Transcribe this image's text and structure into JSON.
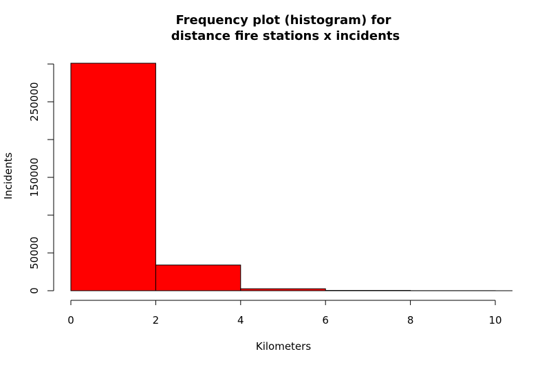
{
  "chart_data": {
    "type": "bar",
    "title_lines": [
      "Frequency plot (histogram) for",
      "distance fire stations x incidents"
    ],
    "xlabel": "Kilometers",
    "ylabel": "Incidents",
    "bins": [
      {
        "x0": 0,
        "x1": 2,
        "value": 301000
      },
      {
        "x0": 2,
        "x1": 4,
        "value": 34000
      },
      {
        "x0": 4,
        "x1": 6,
        "value": 2600
      },
      {
        "x0": 6,
        "x1": 8,
        "value": 400
      },
      {
        "x0": 8,
        "x1": 10,
        "value": 100
      }
    ],
    "xlim": [
      0,
      10
    ],
    "ylim": [
      0,
      301000
    ],
    "x_ticks": [
      0,
      2,
      4,
      6,
      8,
      10
    ],
    "x_tick_labels": [
      "0",
      "2",
      "4",
      "6",
      "8",
      "10"
    ],
    "y_ticks": [
      0,
      50000,
      100000,
      150000,
      200000,
      250000,
      300000
    ],
    "y_tick_labels": [
      "0",
      "50000",
      "",
      "150000",
      "",
      "250000",
      ""
    ],
    "bar_color": "#ff0000",
    "border_color": "#000000",
    "grid": false,
    "legend": "none"
  }
}
